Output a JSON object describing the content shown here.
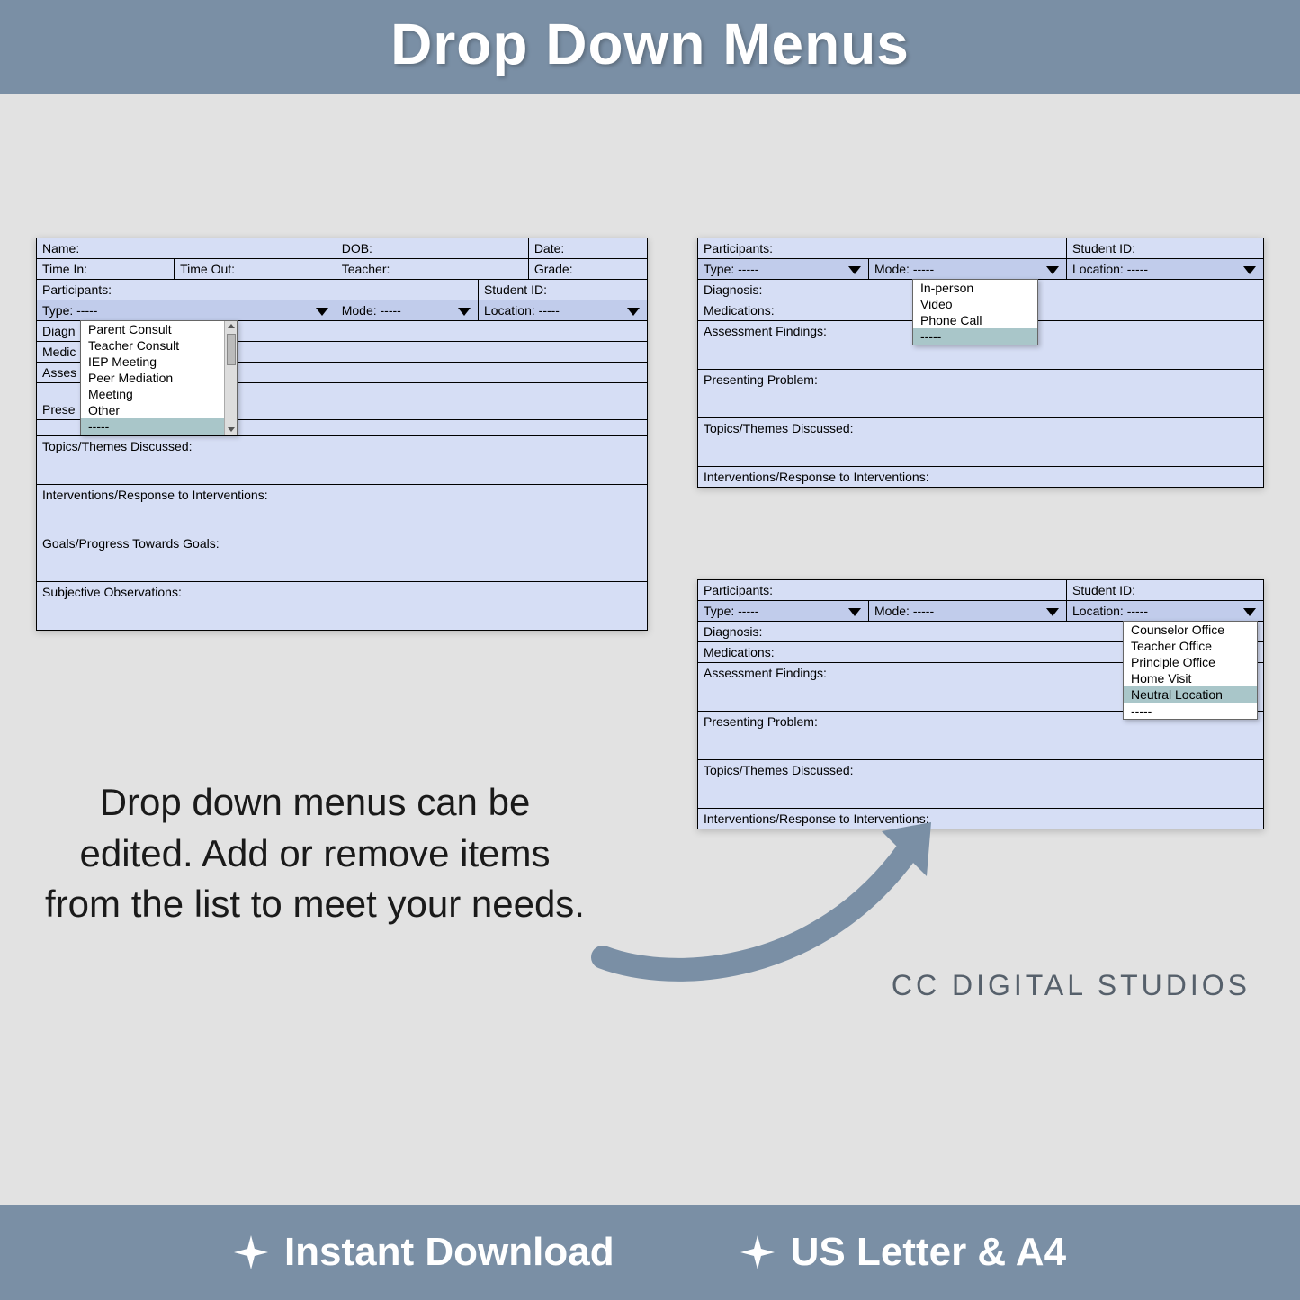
{
  "header": {
    "title": "Drop Down Menus"
  },
  "colors": {
    "band": "#7a8fa5",
    "page_bg": "#e2e2e2",
    "cell_light": "#d6def5",
    "cell_header": "#c1cceb",
    "highlight": "#a9c6c9",
    "text": "#000000",
    "brand_text": "#56606b"
  },
  "form1": {
    "row1": {
      "name": "Name:",
      "dob": "DOB:",
      "date": "Date:"
    },
    "row2": {
      "time_in": "Time In:",
      "time_out": "Time Out:",
      "teacher": "Teacher:",
      "grade": "Grade:"
    },
    "row3": {
      "participants": "Participants:",
      "student_id": "Student ID:"
    },
    "row4": {
      "type_label": "Type:",
      "type_value": "-----",
      "mode_label": "Mode:",
      "mode_value": "-----",
      "location_label": "Location:",
      "location_value": "-----"
    },
    "labels": {
      "diagnosis": "Diagn",
      "medications": "Medic",
      "assessment": "Asses",
      "presenting": "Prese",
      "topics": "Topics/Themes Discussed:",
      "interventions": "Interventions/Response to Interventions:",
      "goals": "Goals/Progress Towards Goals:",
      "subjective": "Subjective Observations:"
    },
    "type_dropdown_items": [
      "Parent Consult",
      "Teacher Consult",
      "IEP Meeting",
      "Peer Mediation",
      "Meeting",
      "Other",
      "-----"
    ],
    "type_dropdown_selected_index": 6
  },
  "form2": {
    "row1": {
      "participants": "Participants:",
      "student_id": "Student ID:"
    },
    "row2": {
      "type_label": "Type:",
      "type_value": "-----",
      "mode_label": "Mode:",
      "mode_value": "-----",
      "location_label": "Location:",
      "location_value": "-----"
    },
    "labels": {
      "diagnosis": "Diagnosis:",
      "medications": "Medications:",
      "assessment": "Assessment Findings:",
      "presenting": "Presenting Problem:",
      "topics": "Topics/Themes Discussed:",
      "interventions": "Interventions/Response to Interventions:"
    },
    "mode_dropdown_items": [
      "In-person",
      "Video",
      "Phone Call",
      "-----"
    ],
    "mode_dropdown_selected_index": 3
  },
  "form3": {
    "row1": {
      "participants": "Participants:",
      "student_id": "Student ID:"
    },
    "row2": {
      "type_label": "Type:",
      "type_value": "-----",
      "mode_label": "Mode:",
      "mode_value": "-----",
      "location_label": "Location:",
      "location_value": "-----"
    },
    "labels": {
      "diagnosis": "Diagnosis:",
      "medications": "Medications:",
      "assessment": "Assessment Findings:",
      "presenting": "Presenting Problem:",
      "topics": "Topics/Themes Discussed:",
      "interventions": "Interventions/Response to Interventions:"
    },
    "location_dropdown_items": [
      "Counselor Office",
      "Teacher Office",
      "Principle Office",
      "Home Visit",
      "Neutral Location",
      "-----"
    ],
    "location_dropdown_selected_index": 4
  },
  "caption": "Drop down menus can be edited.  Add or remove items from the list to meet your needs.",
  "brand": "CC DIGITAL STUDIOS",
  "footer": {
    "item1": "Instant Download",
    "item2": "US Letter & A4"
  }
}
